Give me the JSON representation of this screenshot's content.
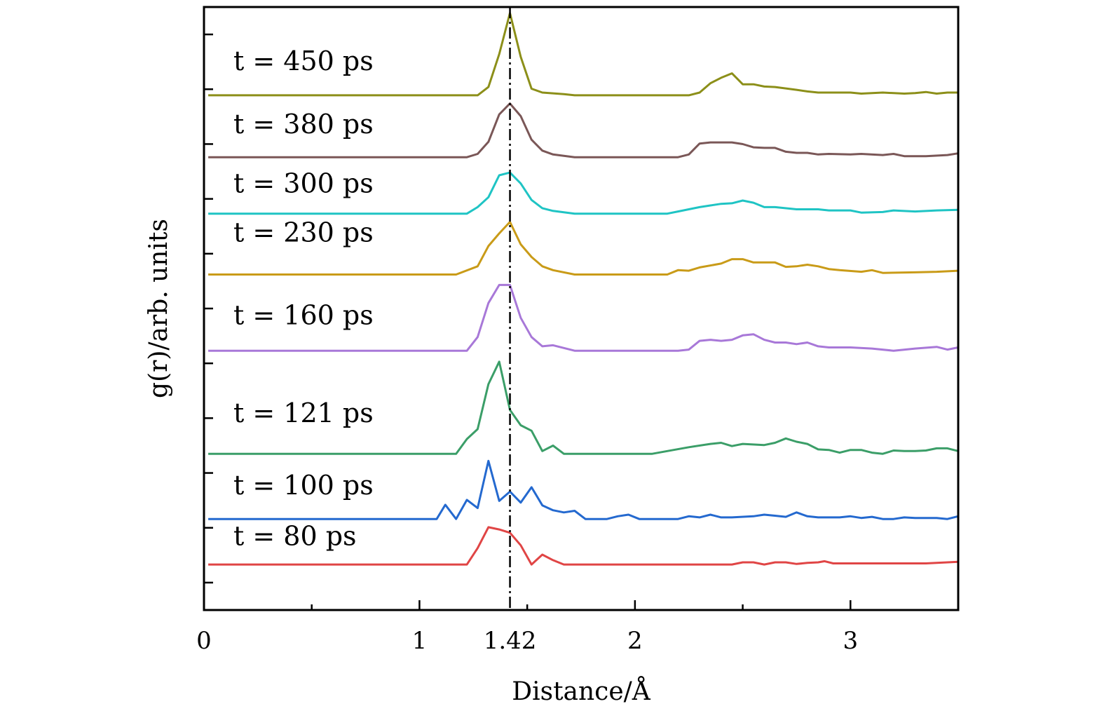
{
  "chart_data": {
    "type": "line",
    "title": "",
    "xlabel": "Distance/Å",
    "ylabel": "g(r)/arb. units",
    "xlim": [
      0,
      3.5
    ],
    "ylim": [
      0,
      11
    ],
    "reference_line": {
      "x": 1.42,
      "style": "dash-dot",
      "color": "#000000"
    },
    "x_ticks": [
      {
        "value": 0,
        "label": "0"
      },
      {
        "value": 1,
        "label": "1"
      },
      {
        "value": 1.42,
        "label": "1.42"
      },
      {
        "value": 2,
        "label": "2"
      },
      {
        "value": 3,
        "label": "3"
      }
    ],
    "x_minor_ticks": [
      0.5,
      1.5,
      2.5
    ],
    "y_ticks": [
      0.5,
      1.5,
      2.5,
      3.5,
      4.5,
      5.5,
      6.5,
      7.5,
      8.5,
      9.5,
      10.5
    ],
    "series": [
      {
        "name": "t = 80 ps",
        "color": "#e04545",
        "baseline": 0.83,
        "label_y": 1.18,
        "points": [
          [
            0.02,
            0
          ],
          [
            1.22,
            0
          ],
          [
            1.27,
            0.3
          ],
          [
            1.32,
            0.68
          ],
          [
            1.37,
            0.64
          ],
          [
            1.42,
            0.58
          ],
          [
            1.47,
            0.35
          ],
          [
            1.52,
            0
          ],
          [
            1.57,
            0.18
          ],
          [
            1.62,
            0.08
          ],
          [
            1.67,
            0
          ],
          [
            2.3,
            0
          ],
          [
            2.45,
            0
          ],
          [
            2.5,
            0.04
          ],
          [
            2.55,
            0.04
          ],
          [
            2.6,
            0
          ],
          [
            2.65,
            0.04
          ],
          [
            2.7,
            0.04
          ],
          [
            2.75,
            0.01
          ],
          [
            2.8,
            0.03
          ],
          [
            2.85,
            0.04
          ],
          [
            2.88,
            0.06
          ],
          [
            2.92,
            0.02
          ],
          [
            3.0,
            0.02
          ],
          [
            3.1,
            0.02
          ],
          [
            3.2,
            0.02
          ],
          [
            3.35,
            0.02
          ],
          [
            3.4,
            0.03
          ],
          [
            3.5,
            0.05
          ]
        ]
      },
      {
        "name": "t = 100 ps",
        "color": "#2469cf",
        "baseline": 1.66,
        "label_y": 2.11,
        "points": [
          [
            0.02,
            0
          ],
          [
            1.08,
            0
          ],
          [
            1.12,
            0.26
          ],
          [
            1.17,
            0
          ],
          [
            1.22,
            0.35
          ],
          [
            1.27,
            0.2
          ],
          [
            1.32,
            1.06
          ],
          [
            1.37,
            0.33
          ],
          [
            1.42,
            0.5
          ],
          [
            1.47,
            0.3
          ],
          [
            1.52,
            0.58
          ],
          [
            1.57,
            0.25
          ],
          [
            1.62,
            0.16
          ],
          [
            1.67,
            0.12
          ],
          [
            1.72,
            0.15
          ],
          [
            1.77,
            0
          ],
          [
            1.87,
            0
          ],
          [
            1.92,
            0.05
          ],
          [
            1.97,
            0.08
          ],
          [
            2.02,
            0
          ],
          [
            2.2,
            0
          ],
          [
            2.25,
            0.05
          ],
          [
            2.3,
            0.03
          ],
          [
            2.35,
            0.08
          ],
          [
            2.4,
            0.03
          ],
          [
            2.45,
            0.03
          ],
          [
            2.55,
            0.05
          ],
          [
            2.6,
            0.08
          ],
          [
            2.65,
            0.06
          ],
          [
            2.7,
            0.04
          ],
          [
            2.75,
            0.12
          ],
          [
            2.8,
            0.05
          ],
          [
            2.85,
            0.03
          ],
          [
            2.95,
            0.03
          ],
          [
            3.0,
            0.05
          ],
          [
            3.05,
            0.02
          ],
          [
            3.1,
            0.04
          ],
          [
            3.15,
            0
          ],
          [
            3.2,
            0
          ],
          [
            3.25,
            0.03
          ],
          [
            3.3,
            0.02
          ],
          [
            3.4,
            0.02
          ],
          [
            3.45,
            0
          ],
          [
            3.5,
            0.05
          ]
        ]
      },
      {
        "name": "t = 121 ps",
        "color": "#3b9e68",
        "baseline": 2.85,
        "label_y": 3.43,
        "points": [
          [
            0.02,
            0
          ],
          [
            1.17,
            0
          ],
          [
            1.22,
            0.27
          ],
          [
            1.27,
            0.45
          ],
          [
            1.32,
            1.27
          ],
          [
            1.37,
            1.68
          ],
          [
            1.42,
            0.8
          ],
          [
            1.47,
            0.52
          ],
          [
            1.52,
            0.42
          ],
          [
            1.57,
            0.05
          ],
          [
            1.62,
            0.15
          ],
          [
            1.67,
            0
          ],
          [
            2.08,
            0
          ],
          [
            2.15,
            0.05
          ],
          [
            2.25,
            0.12
          ],
          [
            2.35,
            0.18
          ],
          [
            2.4,
            0.2
          ],
          [
            2.45,
            0.14
          ],
          [
            2.5,
            0.18
          ],
          [
            2.6,
            0.16
          ],
          [
            2.65,
            0.2
          ],
          [
            2.7,
            0.28
          ],
          [
            2.75,
            0.22
          ],
          [
            2.8,
            0.18
          ],
          [
            2.85,
            0.08
          ],
          [
            2.9,
            0.07
          ],
          [
            2.95,
            0.02
          ],
          [
            3.0,
            0.07
          ],
          [
            3.05,
            0.07
          ],
          [
            3.1,
            0.02
          ],
          [
            3.15,
            0
          ],
          [
            3.2,
            0.06
          ],
          [
            3.25,
            0.05
          ],
          [
            3.3,
            0.05
          ],
          [
            3.35,
            0.06
          ],
          [
            3.4,
            0.1
          ],
          [
            3.45,
            0.1
          ],
          [
            3.5,
            0.05
          ]
        ]
      },
      {
        "name": "t = 160 ps",
        "color": "#a878d8",
        "baseline": 4.73,
        "label_y": 5.21,
        "points": [
          [
            0.02,
            0
          ],
          [
            1.22,
            0
          ],
          [
            1.27,
            0.25
          ],
          [
            1.32,
            0.87
          ],
          [
            1.37,
            1.2
          ],
          [
            1.42,
            1.2
          ],
          [
            1.47,
            0.6
          ],
          [
            1.52,
            0.25
          ],
          [
            1.57,
            0.08
          ],
          [
            1.62,
            0.1
          ],
          [
            1.72,
            0
          ],
          [
            2.2,
            0
          ],
          [
            2.25,
            0.02
          ],
          [
            2.3,
            0.18
          ],
          [
            2.35,
            0.2
          ],
          [
            2.4,
            0.18
          ],
          [
            2.45,
            0.2
          ],
          [
            2.5,
            0.28
          ],
          [
            2.55,
            0.3
          ],
          [
            2.6,
            0.2
          ],
          [
            2.65,
            0.15
          ],
          [
            2.7,
            0.15
          ],
          [
            2.75,
            0.12
          ],
          [
            2.8,
            0.15
          ],
          [
            2.85,
            0.08
          ],
          [
            2.9,
            0.06
          ],
          [
            3.0,
            0.06
          ],
          [
            3.1,
            0.04
          ],
          [
            3.2,
            0
          ],
          [
            3.3,
            0.04
          ],
          [
            3.4,
            0.07
          ],
          [
            3.45,
            0.02
          ],
          [
            3.5,
            0.06
          ]
        ]
      },
      {
        "name": "t = 230 ps",
        "color": "#c99b18",
        "baseline": 6.12,
        "label_y": 6.72,
        "points": [
          [
            0.02,
            0
          ],
          [
            1.17,
            0
          ],
          [
            1.27,
            0.15
          ],
          [
            1.32,
            0.52
          ],
          [
            1.37,
            0.75
          ],
          [
            1.42,
            0.96
          ],
          [
            1.47,
            0.55
          ],
          [
            1.52,
            0.32
          ],
          [
            1.57,
            0.15
          ],
          [
            1.62,
            0.08
          ],
          [
            1.72,
            0
          ],
          [
            2.15,
            0
          ],
          [
            2.2,
            0.08
          ],
          [
            2.25,
            0.07
          ],
          [
            2.3,
            0.13
          ],
          [
            2.4,
            0.2
          ],
          [
            2.45,
            0.28
          ],
          [
            2.5,
            0.28
          ],
          [
            2.55,
            0.22
          ],
          [
            2.6,
            0.22
          ],
          [
            2.65,
            0.22
          ],
          [
            2.7,
            0.14
          ],
          [
            2.75,
            0.15
          ],
          [
            2.8,
            0.18
          ],
          [
            2.85,
            0.15
          ],
          [
            2.9,
            0.1
          ],
          [
            2.95,
            0.08
          ],
          [
            3.05,
            0.05
          ],
          [
            3.1,
            0.08
          ],
          [
            3.15,
            0.03
          ],
          [
            3.3,
            0.04
          ],
          [
            3.4,
            0.05
          ],
          [
            3.5,
            0.07
          ]
        ]
      },
      {
        "name": "t = 300 ps",
        "color": "#1fc4c4",
        "baseline": 7.23,
        "label_y": 7.62,
        "points": [
          [
            0.02,
            0
          ],
          [
            1.22,
            0
          ],
          [
            1.27,
            0.12
          ],
          [
            1.32,
            0.3
          ],
          [
            1.37,
            0.7
          ],
          [
            1.42,
            0.75
          ],
          [
            1.47,
            0.55
          ],
          [
            1.52,
            0.25
          ],
          [
            1.57,
            0.1
          ],
          [
            1.62,
            0.05
          ],
          [
            1.72,
            0
          ],
          [
            2.15,
            0
          ],
          [
            2.2,
            0.04
          ],
          [
            2.25,
            0.08
          ],
          [
            2.3,
            0.12
          ],
          [
            2.35,
            0.15
          ],
          [
            2.4,
            0.18
          ],
          [
            2.45,
            0.19
          ],
          [
            2.5,
            0.24
          ],
          [
            2.55,
            0.2
          ],
          [
            2.6,
            0.12
          ],
          [
            2.65,
            0.12
          ],
          [
            2.75,
            0.08
          ],
          [
            2.85,
            0.08
          ],
          [
            2.9,
            0.06
          ],
          [
            3.0,
            0.06
          ],
          [
            3.05,
            0.02
          ],
          [
            3.15,
            0.03
          ],
          [
            3.2,
            0.06
          ],
          [
            3.3,
            0.04
          ],
          [
            3.4,
            0.06
          ],
          [
            3.5,
            0.07
          ]
        ]
      },
      {
        "name": "t = 380 ps",
        "color": "#7a5757",
        "baseline": 8.26,
        "label_y": 8.7,
        "points": [
          [
            0.02,
            0
          ],
          [
            1.22,
            0
          ],
          [
            1.27,
            0.06
          ],
          [
            1.32,
            0.28
          ],
          [
            1.37,
            0.78
          ],
          [
            1.42,
            0.98
          ],
          [
            1.47,
            0.75
          ],
          [
            1.52,
            0.32
          ],
          [
            1.57,
            0.12
          ],
          [
            1.62,
            0.05
          ],
          [
            1.72,
            0
          ],
          [
            2.2,
            0
          ],
          [
            2.25,
            0.05
          ],
          [
            2.3,
            0.25
          ],
          [
            2.35,
            0.27
          ],
          [
            2.45,
            0.27
          ],
          [
            2.5,
            0.24
          ],
          [
            2.55,
            0.18
          ],
          [
            2.6,
            0.17
          ],
          [
            2.65,
            0.17
          ],
          [
            2.7,
            0.1
          ],
          [
            2.75,
            0.08
          ],
          [
            2.8,
            0.08
          ],
          [
            2.85,
            0.05
          ],
          [
            2.9,
            0.06
          ],
          [
            3.0,
            0.05
          ],
          [
            3.05,
            0.06
          ],
          [
            3.15,
            0.04
          ],
          [
            3.2,
            0.06
          ],
          [
            3.25,
            0.02
          ],
          [
            3.35,
            0.02
          ],
          [
            3.45,
            0.04
          ],
          [
            3.5,
            0.07
          ]
        ]
      },
      {
        "name": "t = 450 ps",
        "color": "#8c8f19",
        "baseline": 9.39,
        "label_y": 9.85,
        "points": [
          [
            0.02,
            0
          ],
          [
            1.27,
            0
          ],
          [
            1.32,
            0.15
          ],
          [
            1.37,
            0.75
          ],
          [
            1.42,
            1.5
          ],
          [
            1.47,
            0.7
          ],
          [
            1.52,
            0.12
          ],
          [
            1.57,
            0.05
          ],
          [
            1.67,
            0.02
          ],
          [
            1.72,
            0
          ],
          [
            2.25,
            0
          ],
          [
            2.3,
            0.05
          ],
          [
            2.35,
            0.22
          ],
          [
            2.4,
            0.32
          ],
          [
            2.45,
            0.4
          ],
          [
            2.5,
            0.2
          ],
          [
            2.55,
            0.2
          ],
          [
            2.6,
            0.16
          ],
          [
            2.65,
            0.15
          ],
          [
            2.75,
            0.1
          ],
          [
            2.8,
            0.07
          ],
          [
            2.85,
            0.05
          ],
          [
            3.0,
            0.05
          ],
          [
            3.05,
            0.03
          ],
          [
            3.15,
            0.05
          ],
          [
            3.25,
            0.03
          ],
          [
            3.3,
            0.04
          ],
          [
            3.35,
            0.06
          ],
          [
            3.4,
            0.03
          ],
          [
            3.45,
            0.05
          ],
          [
            3.5,
            0.05
          ]
        ]
      }
    ]
  }
}
